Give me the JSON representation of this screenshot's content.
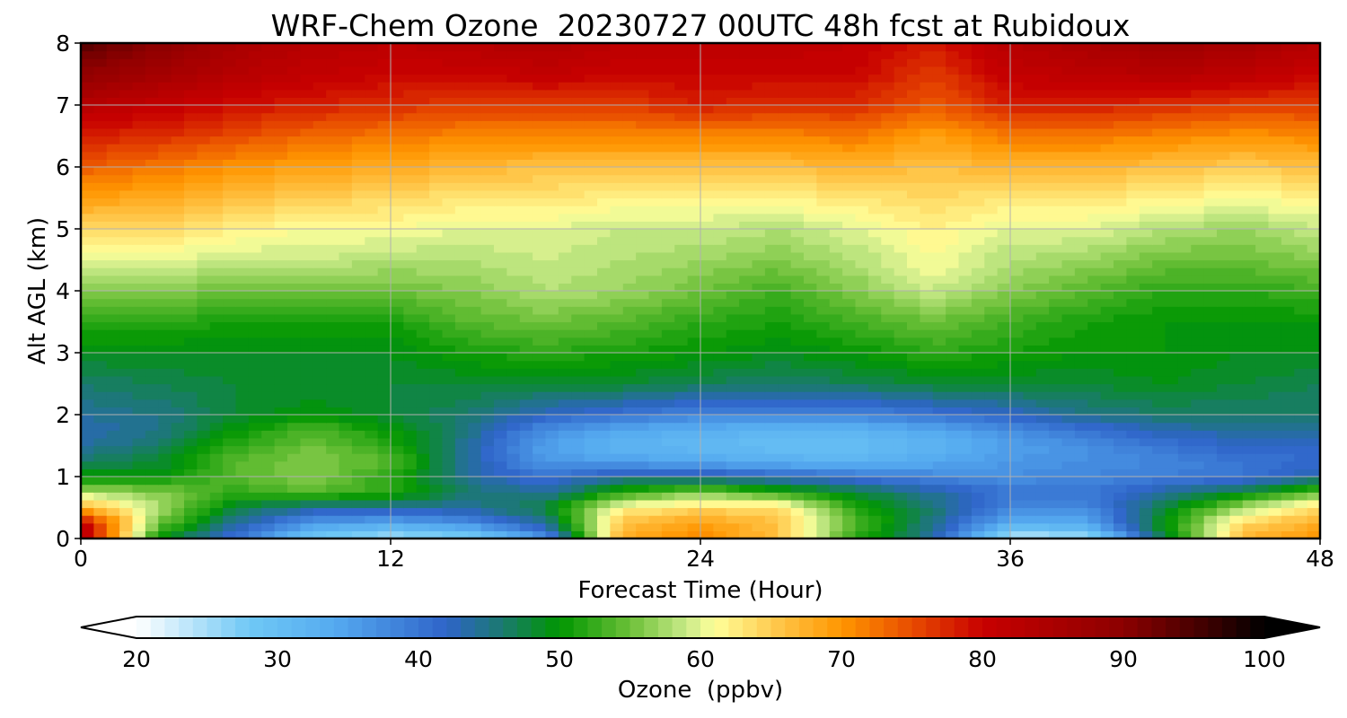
{
  "chart_data": {
    "type": "heatmap",
    "title": "WRF-Chem Ozone  20230727 00UTC 48h fcst at Rubidoux",
    "xlabel": "Forecast Time (Hour)",
    "ylabel": "Alt AGL (km)",
    "xlim": [
      0,
      48
    ],
    "ylim": [
      0,
      8
    ],
    "x_ticks": [
      0,
      12,
      24,
      36,
      48
    ],
    "y_ticks": [
      0,
      1,
      2,
      3,
      4,
      5,
      6,
      7,
      8
    ],
    "grid": true,
    "x": [
      0,
      3,
      6,
      9,
      12,
      15,
      18,
      21,
      24,
      27,
      30,
      33,
      36,
      39,
      42,
      45,
      48
    ],
    "y": [
      0,
      0.25,
      0.5,
      0.75,
      1,
      1.25,
      1.5,
      1.75,
      2,
      2.5,
      3,
      3.5,
      4,
      4.5,
      5,
      5.5,
      6,
      6.5,
      7,
      7.5,
      8
    ],
    "z": [
      [
        84,
        50,
        40,
        27,
        24,
        26,
        36,
        68,
        71,
        66,
        52,
        44,
        23,
        24,
        48,
        67,
        70
      ],
      [
        82,
        55,
        44,
        36,
        34,
        37,
        44,
        66,
        69,
        66,
        54,
        45,
        33,
        34,
        50,
        64,
        68
      ],
      [
        68,
        58,
        48,
        44,
        44,
        44,
        48,
        62,
        64,
        64,
        52,
        46,
        38,
        38,
        48,
        58,
        64
      ],
      [
        58,
        56,
        52,
        54,
        52,
        46,
        44,
        52,
        56,
        52,
        48,
        44,
        40,
        40,
        44,
        48,
        54
      ],
      [
        50,
        50,
        54,
        56,
        52,
        44,
        40,
        44,
        44,
        42,
        40,
        38,
        37,
        38,
        39,
        40,
        44
      ],
      [
        46,
        48,
        54,
        56,
        54,
        44,
        36,
        35,
        34,
        33,
        32,
        34,
        36,
        37,
        38,
        40,
        41
      ],
      [
        44,
        46,
        52,
        55,
        52,
        44,
        35,
        32,
        31,
        30,
        30,
        32,
        35,
        37,
        40,
        42,
        42
      ],
      [
        43,
        45,
        50,
        54,
        50,
        45,
        37,
        34,
        33,
        32,
        32,
        34,
        37,
        40,
        43,
        44,
        44
      ],
      [
        44,
        45,
        48,
        50,
        48,
        46,
        42,
        40,
        38,
        38,
        38,
        40,
        42,
        45,
        46,
        46,
        46
      ],
      [
        46,
        47,
        48,
        48,
        48,
        48,
        48,
        48,
        47,
        46,
        47,
        48,
        48,
        48,
        49,
        48,
        47
      ],
      [
        49,
        49,
        49,
        49,
        49,
        51,
        52,
        51,
        50,
        49,
        50,
        52,
        51,
        50,
        50,
        49,
        49
      ],
      [
        52,
        52,
        51,
        51,
        51,
        54,
        55,
        54,
        52,
        51,
        53,
        55,
        53,
        51,
        50,
        50,
        50
      ],
      [
        56,
        56,
        55,
        55,
        55,
        56,
        58,
        57,
        55,
        53,
        56,
        59,
        56,
        54,
        52,
        52,
        53
      ],
      [
        60,
        60,
        59,
        59,
        58,
        58,
        59,
        58,
        57,
        56,
        58,
        61,
        58,
        57,
        55,
        55,
        56
      ],
      [
        64,
        64,
        62,
        61,
        61,
        60,
        60,
        59,
        59,
        58,
        60,
        62,
        60,
        60,
        58,
        57,
        59
      ],
      [
        69,
        68,
        66,
        65,
        64,
        63,
        63,
        62,
        62,
        62,
        63,
        64,
        63,
        63,
        62,
        61,
        62
      ],
      [
        74,
        72,
        70,
        69,
        68,
        67,
        66,
        66,
        66,
        66,
        67,
        66,
        67,
        67,
        66,
        65,
        66
      ],
      [
        78,
        77,
        75,
        73,
        72,
        71,
        71,
        71,
        71,
        71,
        72,
        69,
        72,
        72,
        71,
        70,
        71
      ],
      [
        83,
        81,
        79,
        78,
        77,
        76,
        76,
        76,
        78,
        77,
        77,
        74,
        78,
        78,
        77,
        76,
        76
      ],
      [
        89,
        86,
        83,
        81,
        80,
        80,
        81,
        80,
        80,
        80,
        80,
        76,
        81,
        82,
        83,
        82,
        80
      ],
      [
        94,
        90,
        85,
        83,
        82,
        83,
        84,
        82,
        82,
        82,
        81,
        78,
        83,
        85,
        87,
        86,
        83
      ]
    ],
    "colorbar": {
      "label": "Ozone  (ppbv)",
      "min": 20,
      "max": 100,
      "ticks": [
        20,
        30,
        40,
        50,
        60,
        70,
        80,
        90,
        100
      ],
      "extend": "both",
      "stops": [
        {
          "v": 20,
          "c": "#ffffff"
        },
        {
          "v": 28,
          "c": "#6fc8f5"
        },
        {
          "v": 34,
          "c": "#55aaf0"
        },
        {
          "v": 42,
          "c": "#2f64c8"
        },
        {
          "v": 46,
          "c": "#1a7a6e"
        },
        {
          "v": 50,
          "c": "#009600"
        },
        {
          "v": 55,
          "c": "#6cc038"
        },
        {
          "v": 59,
          "c": "#c8ea88"
        },
        {
          "v": 61,
          "c": "#ffff9a"
        },
        {
          "v": 66,
          "c": "#ffc040"
        },
        {
          "v": 70,
          "c": "#ff9600"
        },
        {
          "v": 75,
          "c": "#e84c00"
        },
        {
          "v": 80,
          "c": "#c80000"
        },
        {
          "v": 90,
          "c": "#8c0000"
        },
        {
          "v": 96,
          "c": "#3c0000"
        },
        {
          "v": 100,
          "c": "#000000"
        }
      ]
    }
  }
}
